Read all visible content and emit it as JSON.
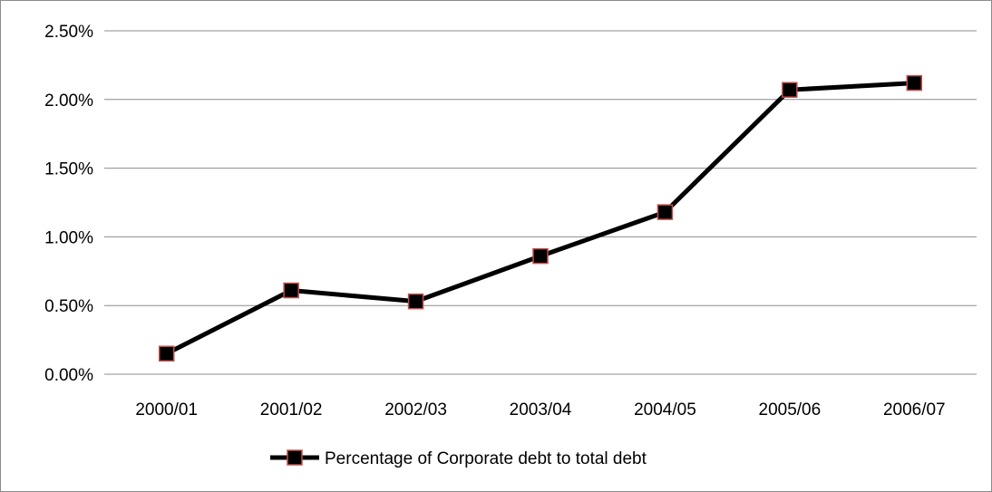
{
  "chart_data": {
    "type": "line",
    "categories": [
      "2000/01",
      "2001/02",
      "2002/03",
      "2003/04",
      "2004/05",
      "2005/06",
      "2006/07"
    ],
    "series": [
      {
        "name": "Percentage of Corporate debt to total debt",
        "values": [
          0.15,
          0.61,
          0.53,
          0.86,
          1.18,
          2.07,
          2.12
        ]
      }
    ],
    "ylim": [
      0,
      2.5
    ],
    "yticks": [
      "0.00%",
      "0.50%",
      "1.00%",
      "1.50%",
      "2.00%",
      "2.50%"
    ],
    "ytick_values": [
      0,
      0.5,
      1.0,
      1.5,
      2.0,
      2.5
    ],
    "grid": true,
    "legend_position": "bottom",
    "colors": {
      "line": "#000000",
      "marker_fill": "#000000",
      "marker_edge": "#c0504d",
      "grid": "#8c8c8c"
    }
  }
}
